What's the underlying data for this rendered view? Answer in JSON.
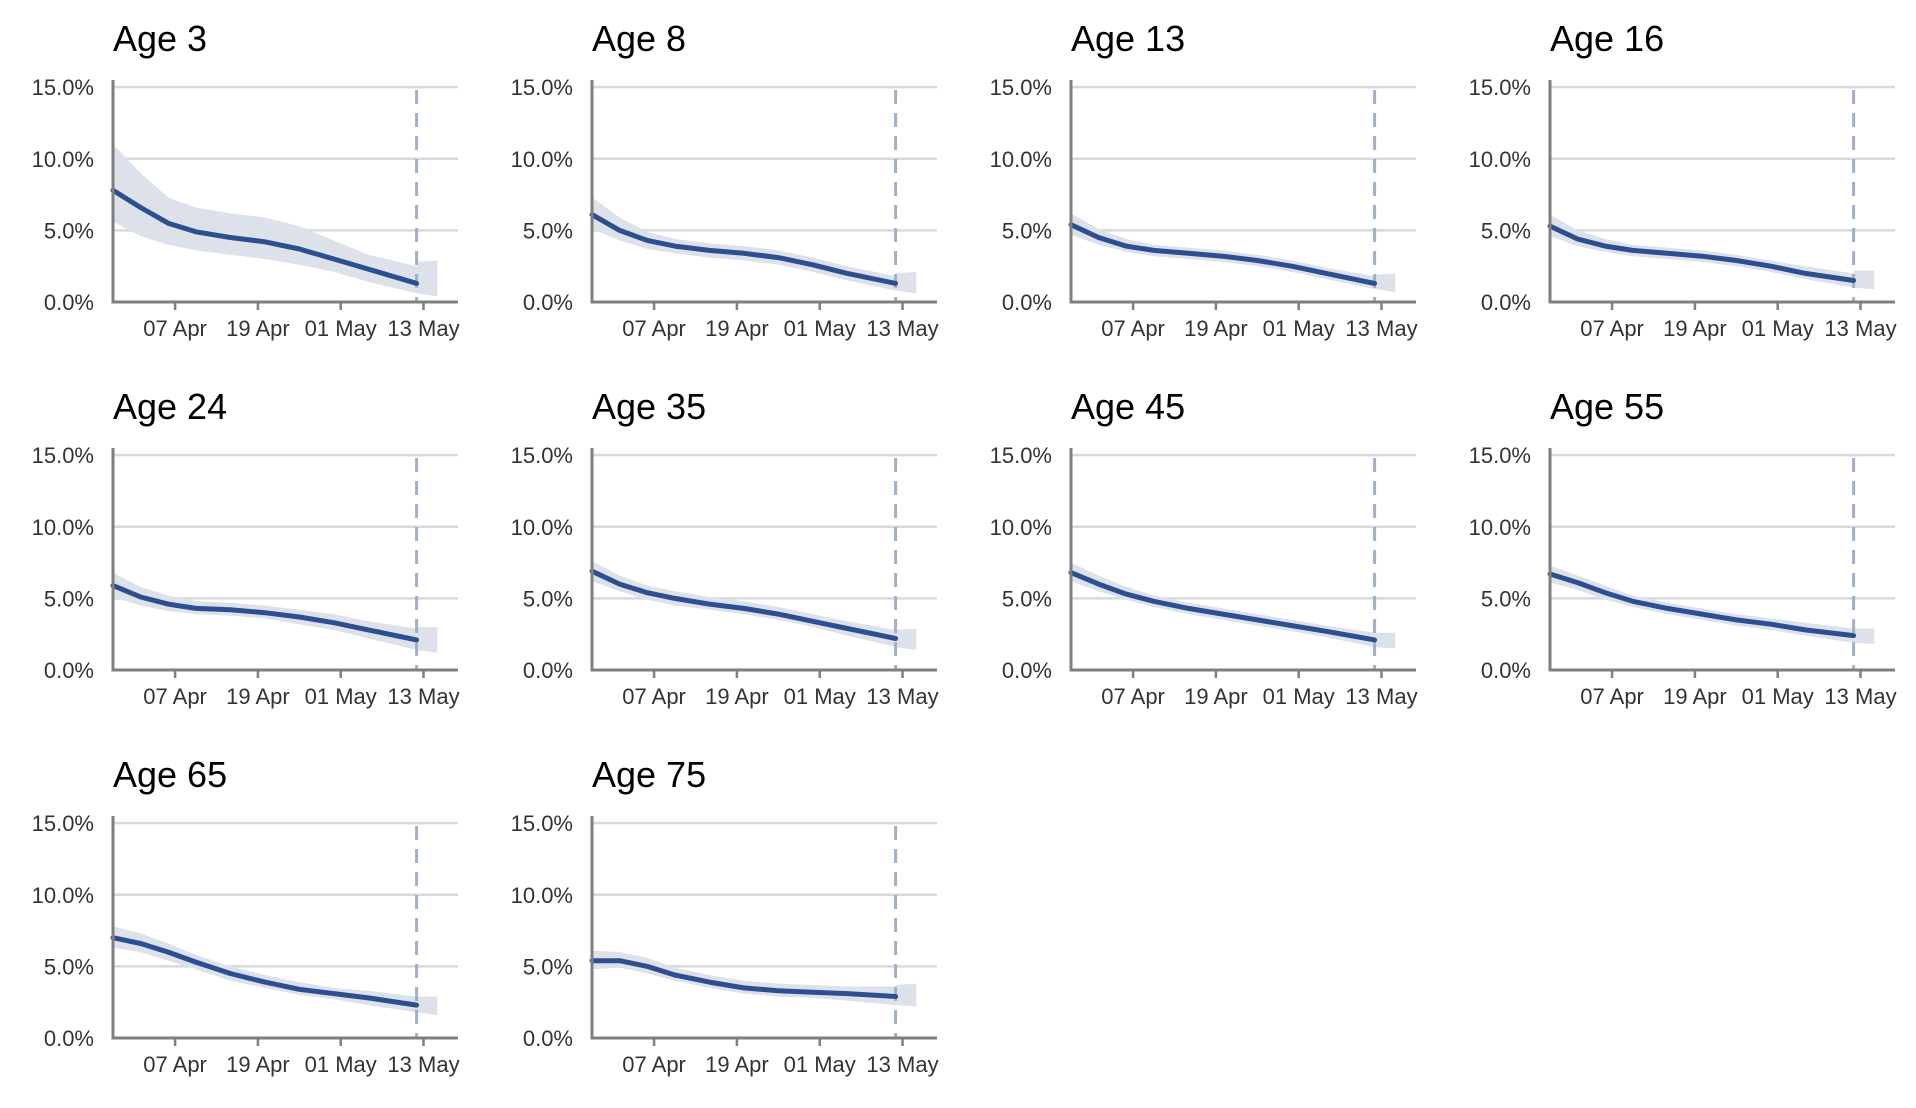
{
  "chart_data": {
    "type": "line",
    "layout": "small-multiples",
    "y_ticks": [
      0,
      5,
      10,
      15
    ],
    "y_tick_labels": [
      "0.0%",
      "5.0%",
      "10.0%",
      "15.0%"
    ],
    "y_range": [
      0,
      15.5
    ],
    "x_range": [
      "2021-03-29",
      "2021-05-18"
    ],
    "x_ticks": [
      "2021-04-07",
      "2021-04-19",
      "2021-05-01",
      "2021-05-13"
    ],
    "x_tick_labels": [
      "07 Apr",
      "19 Apr",
      "01 May",
      "13 May"
    ],
    "reference_date": "2021-05-12",
    "grid": true,
    "colors": {
      "line": "#2d4f91",
      "band": "#dde2ea",
      "grid": "#d6d9de",
      "axis": "#7f7f7f",
      "reference": "#9fb0c8"
    },
    "panels": [
      {
        "title": "Age 3",
        "series": [
          {
            "x": [
              "2021-03-29",
              "2021-04-02",
              "2021-04-06",
              "2021-04-10",
              "2021-04-15",
              "2021-04-20",
              "2021-04-25",
              "2021-04-30",
              "2021-05-05",
              "2021-05-12"
            ],
            "y": [
              7.8,
              6.6,
              5.5,
              4.9,
              4.5,
              4.2,
              3.7,
              3.0,
              2.3,
              1.3
            ],
            "lower": [
              5.6,
              4.6,
              4.0,
              3.6,
              3.3,
              3.0,
              2.6,
              2.1,
              1.4,
              0.6
            ],
            "upper": [
              11.0,
              9.0,
              7.3,
              6.6,
              6.2,
              5.9,
              5.3,
              4.3,
              3.3,
              2.5
            ]
          },
          {
            "x": [
              "2021-05-12",
              "2021-05-15"
            ],
            "y": [
              null,
              null
            ],
            "lower": [
              0.6,
              0.4
            ],
            "upper": [
              2.8,
              2.9
            ]
          }
        ]
      },
      {
        "title": "Age 8",
        "series": [
          {
            "x": [
              "2021-03-29",
              "2021-04-02",
              "2021-04-06",
              "2021-04-10",
              "2021-04-15",
              "2021-04-20",
              "2021-04-25",
              "2021-04-30",
              "2021-05-05",
              "2021-05-12"
            ],
            "y": [
              6.1,
              5.0,
              4.3,
              3.9,
              3.6,
              3.4,
              3.1,
              2.6,
              2.0,
              1.3
            ],
            "lower": [
              5.1,
              4.3,
              3.7,
              3.4,
              3.1,
              2.9,
              2.6,
              2.1,
              1.5,
              0.8
            ],
            "upper": [
              7.3,
              5.9,
              4.9,
              4.4,
              4.1,
              3.9,
              3.6,
              3.1,
              2.5,
              1.8
            ]
          },
          {
            "x": [
              "2021-05-12",
              "2021-05-15"
            ],
            "y": [
              null,
              null
            ],
            "lower": [
              0.8,
              0.6
            ],
            "upper": [
              2.0,
              2.1
            ]
          }
        ]
      },
      {
        "title": "Age 13",
        "series": [
          {
            "x": [
              "2021-03-29",
              "2021-04-02",
              "2021-04-06",
              "2021-04-10",
              "2021-04-15",
              "2021-04-20",
              "2021-04-25",
              "2021-04-30",
              "2021-05-05",
              "2021-05-12"
            ],
            "y": [
              5.4,
              4.5,
              3.9,
              3.6,
              3.4,
              3.2,
              2.9,
              2.5,
              2.0,
              1.3
            ],
            "lower": [
              4.7,
              4.0,
              3.5,
              3.2,
              3.0,
              2.8,
              2.5,
              2.1,
              1.6,
              0.9
            ],
            "upper": [
              6.2,
              5.1,
              4.4,
              4.0,
              3.8,
              3.6,
              3.3,
              2.9,
              2.4,
              1.8
            ]
          },
          {
            "x": [
              "2021-05-12",
              "2021-05-15"
            ],
            "y": [
              null,
              null
            ],
            "lower": [
              0.9,
              0.7
            ],
            "upper": [
              1.9,
              2.0
            ]
          }
        ]
      },
      {
        "title": "Age 16",
        "series": [
          {
            "x": [
              "2021-03-29",
              "2021-04-02",
              "2021-04-06",
              "2021-04-10",
              "2021-04-15",
              "2021-04-20",
              "2021-04-25",
              "2021-04-30",
              "2021-05-05",
              "2021-05-12"
            ],
            "y": [
              5.3,
              4.4,
              3.9,
              3.6,
              3.4,
              3.2,
              2.9,
              2.5,
              2.0,
              1.5
            ],
            "lower": [
              4.6,
              3.9,
              3.5,
              3.2,
              3.0,
              2.8,
              2.5,
              2.1,
              1.6,
              1.0
            ],
            "upper": [
              6.1,
              5.0,
              4.4,
              4.0,
              3.8,
              3.6,
              3.3,
              2.9,
              2.5,
              2.0
            ]
          },
          {
            "x": [
              "2021-05-12",
              "2021-05-15"
            ],
            "y": [
              null,
              null
            ],
            "lower": [
              1.0,
              0.9
            ],
            "upper": [
              2.2,
              2.2
            ]
          }
        ]
      },
      {
        "title": "Age 24",
        "series": [
          {
            "x": [
              "2021-03-29",
              "2021-04-02",
              "2021-04-06",
              "2021-04-10",
              "2021-04-15",
              "2021-04-20",
              "2021-04-25",
              "2021-04-30",
              "2021-05-05",
              "2021-05-12"
            ],
            "y": [
              5.9,
              5.1,
              4.6,
              4.3,
              4.2,
              4.0,
              3.7,
              3.3,
              2.8,
              2.1
            ],
            "lower": [
              5.1,
              4.5,
              4.1,
              3.9,
              3.8,
              3.6,
              3.2,
              2.8,
              2.2,
              1.4
            ],
            "upper": [
              6.8,
              5.8,
              5.2,
              4.8,
              4.7,
              4.5,
              4.2,
              3.9,
              3.4,
              2.9
            ]
          },
          {
            "x": [
              "2021-05-12",
              "2021-05-15"
            ],
            "y": [
              null,
              null
            ],
            "lower": [
              1.4,
              1.2
            ],
            "upper": [
              3.0,
              3.0
            ]
          }
        ]
      },
      {
        "title": "Age 35",
        "series": [
          {
            "x": [
              "2021-03-29",
              "2021-04-02",
              "2021-04-06",
              "2021-04-10",
              "2021-04-15",
              "2021-04-20",
              "2021-04-25",
              "2021-04-30",
              "2021-05-05",
              "2021-05-12"
            ],
            "y": [
              6.9,
              6.0,
              5.4,
              5.0,
              4.6,
              4.3,
              3.9,
              3.4,
              2.9,
              2.2
            ],
            "lower": [
              6.2,
              5.5,
              4.9,
              4.5,
              4.2,
              3.9,
              3.5,
              3.0,
              2.4,
              1.6
            ],
            "upper": [
              7.6,
              6.6,
              5.9,
              5.5,
              5.1,
              4.8,
              4.4,
              3.9,
              3.4,
              2.8
            ]
          },
          {
            "x": [
              "2021-05-12",
              "2021-05-15"
            ],
            "y": [
              null,
              null
            ],
            "lower": [
              1.6,
              1.4
            ],
            "upper": [
              2.8,
              2.9
            ]
          }
        ]
      },
      {
        "title": "Age 45",
        "series": [
          {
            "x": [
              "2021-03-29",
              "2021-04-02",
              "2021-04-06",
              "2021-04-10",
              "2021-04-15",
              "2021-04-20",
              "2021-04-25",
              "2021-04-30",
              "2021-05-05",
              "2021-05-12"
            ],
            "y": [
              6.8,
              6.0,
              5.3,
              4.8,
              4.3,
              3.9,
              3.5,
              3.1,
              2.7,
              2.1
            ],
            "lower": [
              6.2,
              5.5,
              4.9,
              4.4,
              3.9,
              3.5,
              3.1,
              2.7,
              2.3,
              1.6
            ],
            "upper": [
              7.5,
              6.6,
              5.8,
              5.2,
              4.7,
              4.3,
              3.9,
              3.5,
              3.1,
              2.6
            ]
          },
          {
            "x": [
              "2021-05-12",
              "2021-05-15"
            ],
            "y": [
              null,
              null
            ],
            "lower": [
              1.6,
              1.5
            ],
            "upper": [
              2.6,
              2.6
            ]
          }
        ]
      },
      {
        "title": "Age 55",
        "series": [
          {
            "x": [
              "2021-03-29",
              "2021-04-02",
              "2021-04-06",
              "2021-04-10",
              "2021-04-15",
              "2021-04-20",
              "2021-04-25",
              "2021-04-30",
              "2021-05-05",
              "2021-05-12"
            ],
            "y": [
              6.7,
              6.1,
              5.4,
              4.8,
              4.3,
              3.9,
              3.5,
              3.2,
              2.8,
              2.4
            ],
            "lower": [
              6.1,
              5.6,
              4.9,
              4.4,
              3.9,
              3.5,
              3.1,
              2.8,
              2.4,
              1.9
            ],
            "upper": [
              7.3,
              6.6,
              5.9,
              5.2,
              4.7,
              4.3,
              3.9,
              3.6,
              3.3,
              2.9
            ]
          },
          {
            "x": [
              "2021-05-12",
              "2021-05-15"
            ],
            "y": [
              null,
              null
            ],
            "lower": [
              1.9,
              1.8
            ],
            "upper": [
              2.9,
              2.9
            ]
          }
        ]
      },
      {
        "title": "Age 65",
        "series": [
          {
            "x": [
              "2021-03-29",
              "2021-04-02",
              "2021-04-06",
              "2021-04-10",
              "2021-04-15",
              "2021-04-20",
              "2021-04-25",
              "2021-04-30",
              "2021-05-05",
              "2021-05-12"
            ],
            "y": [
              7.0,
              6.6,
              6.0,
              5.3,
              4.5,
              3.9,
              3.4,
              3.1,
              2.8,
              2.3
            ],
            "lower": [
              6.3,
              6.0,
              5.4,
              4.8,
              4.0,
              3.5,
              3.0,
              2.7,
              2.3,
              1.8
            ],
            "upper": [
              7.8,
              7.3,
              6.6,
              5.8,
              5.0,
              4.4,
              3.9,
              3.5,
              3.3,
              2.9
            ]
          },
          {
            "x": [
              "2021-05-12",
              "2021-05-15"
            ],
            "y": [
              null,
              null
            ],
            "lower": [
              1.8,
              1.6
            ],
            "upper": [
              2.9,
              2.9
            ]
          }
        ]
      },
      {
        "title": "Age 75",
        "series": [
          {
            "x": [
              "2021-03-29",
              "2021-04-02",
              "2021-04-06",
              "2021-04-10",
              "2021-04-15",
              "2021-04-20",
              "2021-04-25",
              "2021-04-30",
              "2021-05-05",
              "2021-05-12"
            ],
            "y": [
              5.4,
              5.4,
              5.0,
              4.4,
              3.9,
              3.5,
              3.3,
              3.2,
              3.1,
              2.9
            ],
            "lower": [
              4.8,
              4.9,
              4.5,
              4.0,
              3.5,
              3.1,
              2.9,
              2.8,
              2.6,
              2.3
            ],
            "upper": [
              6.1,
              6.0,
              5.6,
              4.9,
              4.4,
              4.0,
              3.8,
              3.7,
              3.6,
              3.6
            ]
          },
          {
            "x": [
              "2021-05-12",
              "2021-05-15"
            ],
            "y": [
              null,
              null
            ],
            "lower": [
              2.3,
              2.2
            ],
            "upper": [
              3.7,
              3.8
            ]
          }
        ]
      }
    ]
  }
}
